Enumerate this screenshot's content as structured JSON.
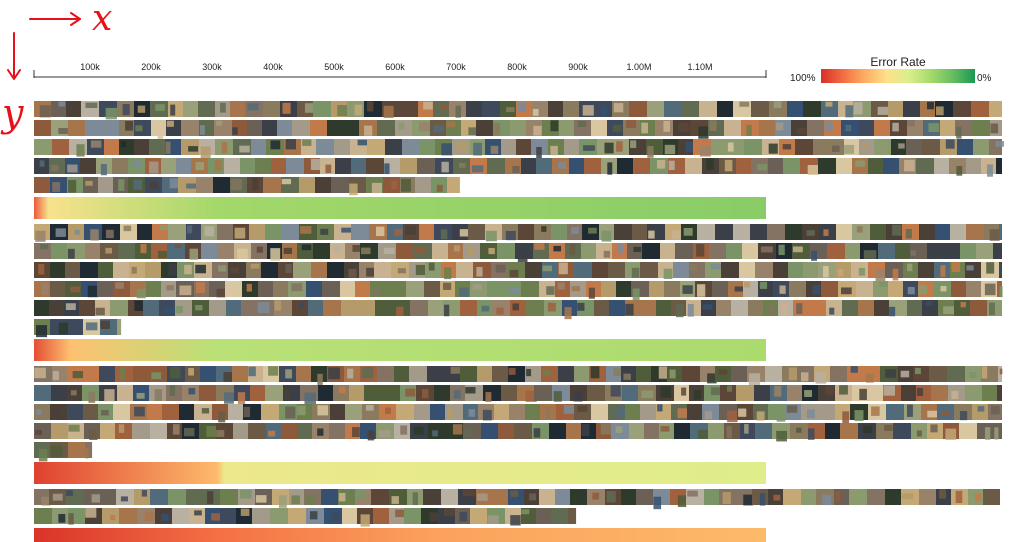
{
  "axis": {
    "ticks": [
      "100k",
      "200k",
      "300k",
      "400k",
      "500k",
      "600k",
      "700k",
      "800k",
      "900k",
      "1.00M",
      "1.10M"
    ]
  },
  "legend": {
    "title": "Error Rate",
    "left_label": "100%",
    "right_label": "0%",
    "colors": [
      "#d73027",
      "#f46d43",
      "#fdae61",
      "#fee08b",
      "#d9ef8b",
      "#a6d96a",
      "#66bd63",
      "#1a9850"
    ]
  },
  "annotations": {
    "x_letter": "x",
    "y_letter": "y"
  },
  "groups": [
    {
      "thumbnail_rows": 5,
      "last_row_fill": 0.44,
      "bar_stops": [
        [
          0,
          0.9
        ],
        [
          0.02,
          0.55
        ],
        [
          0.25,
          0.28
        ],
        [
          1.0,
          0.22
        ]
      ]
    },
    {
      "thumbnail_rows": 6,
      "last_row_fill": 0.09,
      "bar_stops": [
        [
          0,
          0.93
        ],
        [
          0.05,
          0.66
        ],
        [
          0.25,
          0.34
        ],
        [
          1.0,
          0.3
        ]
      ]
    },
    {
      "thumbnail_rows": 5,
      "last_row_fill": 0.06,
      "bar_stops": [
        [
          0,
          0.96
        ],
        [
          0.25,
          0.68
        ],
        [
          0.26,
          0.5
        ],
        [
          1.0,
          0.45
        ]
      ]
    },
    {
      "thumbnail_rows": 2,
      "last_row_fill": 0.56,
      "bar_stops": [
        [
          0,
          0.99
        ],
        [
          0.25,
          0.85
        ],
        [
          0.55,
          0.74
        ],
        [
          1.0,
          0.68
        ]
      ]
    }
  ]
}
